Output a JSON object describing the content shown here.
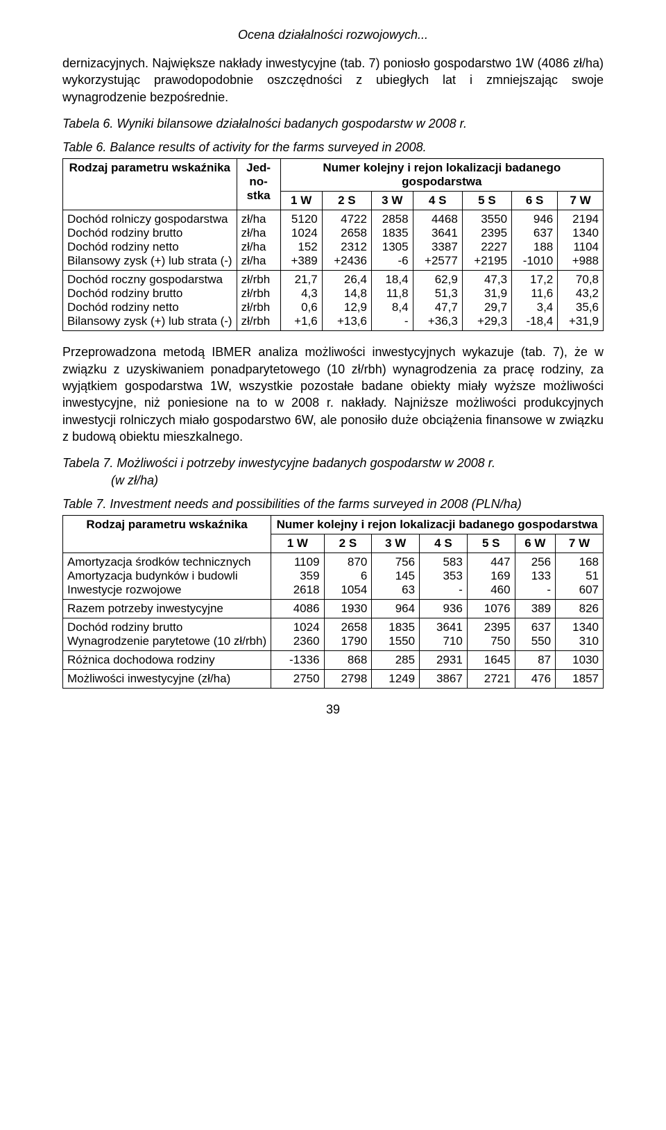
{
  "running_head": "Ocena działalności rozwojowych...",
  "para1": "dernizacyjnych. Największe nakłady inwestycyjne (tab. 7) poniosło gospodarstwo 1W (4086 zł/ha) wykorzystując prawodopodobnie oszczędności z ubiegłych lat i zmniejszając swoje wynagrodzenie bezpośrednie.",
  "table6_caption_pl": "Tabela 6. Wyniki bilansowe działalności badanych gospodarstw w 2008 r.",
  "table6_caption_en": "Table 6. Balance results of activity for the farms surveyed in 2008.",
  "t6": {
    "header_param": "Rodzaj parametru wskaźnika",
    "header_unit": "Jed-no-stka",
    "header_group": "Numer kolejny i rejon lokalizacji badanego gospodarstwa",
    "cols": [
      "1 W",
      "2 S",
      "3 W",
      "4 S",
      "5 S",
      "6 S",
      "7 W"
    ],
    "rows": [
      {
        "label": "Dochód rolniczy gospodarstwa",
        "unit": "zł/ha",
        "vals": [
          "5120",
          "4722",
          "2858",
          "4468",
          "3550",
          "946",
          "2194"
        ]
      },
      {
        "label": "Dochód rodziny brutto",
        "unit": "zł/ha",
        "vals": [
          "1024",
          "2658",
          "1835",
          "3641",
          "2395",
          "637",
          "1340"
        ]
      },
      {
        "label": "Dochód rodziny netto",
        "unit": "zł/ha",
        "vals": [
          "152",
          "2312",
          "1305",
          "3387",
          "2227",
          "188",
          "1104"
        ]
      },
      {
        "label": "Bilansowy zysk (+) lub strata (-)",
        "unit": "zł/ha",
        "vals": [
          "+389",
          "+2436",
          "-6",
          "+2577",
          "+2195",
          "-1010",
          "+988"
        ]
      },
      {
        "label": "Dochód roczny gospodarstwa",
        "unit": "zł/rbh",
        "vals": [
          "21,7",
          "26,4",
          "18,4",
          "62,9",
          "47,3",
          "17,2",
          "70,8"
        ]
      },
      {
        "label": "Dochód rodziny brutto",
        "unit": "zł/rbh",
        "vals": [
          "4,3",
          "14,8",
          "11,8",
          "51,3",
          "31,9",
          "11,6",
          "43,2"
        ]
      },
      {
        "label": "Dochód rodziny netto",
        "unit": "zł/rbh",
        "vals": [
          "0,6",
          "12,9",
          "8,4",
          "47,7",
          "29,7",
          "3,4",
          "35,6"
        ]
      },
      {
        "label": "Bilansowy zysk (+) lub strata (-)",
        "unit": "zł/rbh",
        "vals": [
          "+1,6",
          "+13,6",
          "-",
          "+36,3",
          "+29,3",
          "-18,4",
          "+31,9"
        ]
      }
    ]
  },
  "para2": "Przeprowadzona metodą IBMER analiza możliwości inwestycyjnych wykazuje (tab. 7), że w związku z uzyskiwaniem ponadparytetowego (10 zł/rbh) wynagrodzenia za pracę rodziny, za wyjątkiem gospodarstwa 1W, wszystkie pozostałe badane obiekty miały wyższe możliwości inwestycyjne, niż poniesione na to w 2008 r. nakłady. Najniższe możliwości produkcyjnych inwestycji rolniczych miało gospodarstwo 6W, ale ponosiło duże obciążenia finansowe w związku z budową obiektu mieszkalnego.",
  "table7_caption_pl_a": "Tabela 7. Możliwości i potrzeby inwestycyjne badanych gospodarstw w 2008 r.",
  "table7_caption_pl_b": "(w zł/ha)",
  "table7_caption_en": "Table 7. Investment needs and possibilities of the farms surveyed in 2008 (PLN/ha)",
  "t7": {
    "header_param": "Rodzaj parametru wskaźnika",
    "header_group": "Numer kolejny i rejon lokalizacji badanego gospodarstwa",
    "cols": [
      "1 W",
      "2 S",
      "3 W",
      "4 S",
      "5 S",
      "6 W",
      "7 W"
    ],
    "block1": [
      {
        "label": "Amortyzacja środków technicznych",
        "vals": [
          "1109",
          "870",
          "756",
          "583",
          "447",
          "256",
          "168"
        ]
      },
      {
        "label": "Amortyzacja budynków i budowli",
        "vals": [
          "359",
          "6",
          "145",
          "353",
          "169",
          "133",
          "51"
        ]
      },
      {
        "label": "Inwestycje rozwojowe",
        "vals": [
          "2618",
          "1054",
          "63",
          "-",
          "460",
          "-",
          "607"
        ]
      }
    ],
    "sum_row": {
      "label": "Razem potrzeby inwestycyjne",
      "vals": [
        "4086",
        "1930",
        "964",
        "936",
        "1076",
        "389",
        "826"
      ]
    },
    "block2": [
      {
        "label": "Dochód rodziny brutto",
        "vals": [
          "1024",
          "2658",
          "1835",
          "3641",
          "2395",
          "637",
          "1340"
        ]
      },
      {
        "label": "Wynagrodzenie parytetowe (10 zł/rbh)",
        "vals": [
          "2360",
          "1790",
          "1550",
          "710",
          "750",
          "550",
          "310"
        ]
      }
    ],
    "diff_row": {
      "label": "Różnica dochodowa rodziny",
      "vals": [
        "-1336",
        "868",
        "285",
        "2931",
        "1645",
        "87",
        "1030"
      ]
    },
    "final_row": {
      "label": "Możliwości inwestycyjne (zł/ha)",
      "vals": [
        "2750",
        "2798",
        "1249",
        "3867",
        "2721",
        "476",
        "1857"
      ]
    }
  },
  "page_number": "39"
}
